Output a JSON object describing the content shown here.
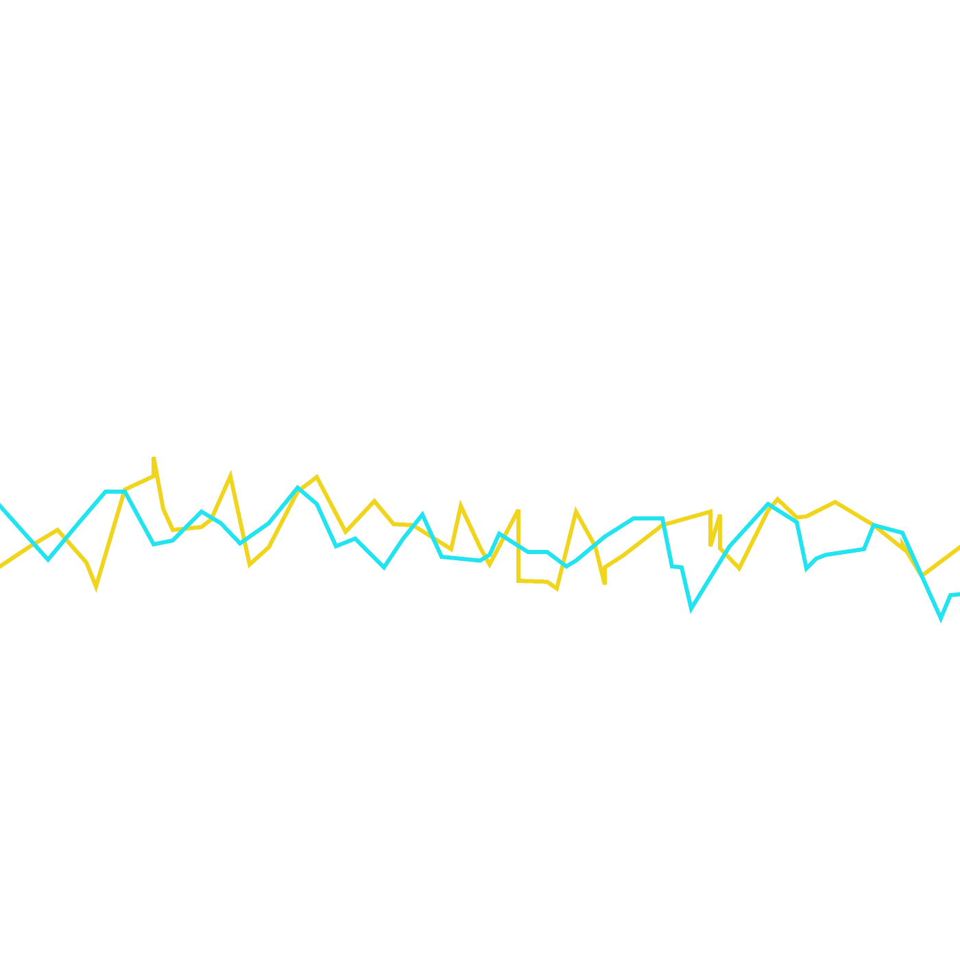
{
  "chart_data": {
    "type": "line",
    "title": "",
    "xlabel": "",
    "ylabel": "",
    "grid": false,
    "legend": "none",
    "xlim": [
      0,
      100
    ],
    "ylim": [
      0,
      100
    ],
    "series": [
      {
        "color": "#f0d51c",
        "x": [
          0,
          3,
          6,
          9,
          10,
          13,
          16,
          16,
          17,
          18,
          21,
          22,
          24,
          26,
          28,
          31,
          33,
          36,
          39,
          41,
          43,
          47,
          48,
          50,
          51,
          54,
          54,
          57,
          58,
          60,
          62,
          63,
          63,
          65,
          69,
          74,
          74,
          74,
          75,
          75,
          77,
          80,
          81,
          83,
          84,
          87,
          91,
          94,
          94,
          96,
          100
        ],
        "y": [
          41.0,
          43.0,
          44.8,
          41.4,
          38.9,
          49.0,
          50.4,
          52.4,
          47.0,
          44.8,
          45.1,
          45.9,
          50.4,
          41.2,
          43.0,
          48.8,
          50.3,
          44.6,
          47.8,
          45.4,
          45.3,
          42.8,
          47.3,
          43.0,
          41.2,
          46.9,
          39.5,
          39.4,
          38.7,
          46.7,
          43.1,
          39.1,
          40.9,
          42.2,
          45.3,
          46.7,
          45.1,
          43.1,
          46.4,
          42.9,
          40.8,
          46.8,
          48.0,
          46.1,
          46.2,
          47.7,
          45.3,
          42.9,
          43.3,
          40.0,
          43.0
        ]
      },
      {
        "color": "#22e4f0",
        "x": [
          0,
          5,
          8,
          11,
          13,
          16,
          18,
          21,
          23,
          25,
          28,
          31,
          33,
          35,
          37,
          40,
          42,
          44,
          46,
          50,
          51,
          52,
          55,
          57,
          59,
          60,
          63,
          66,
          69,
          70,
          71,
          72,
          76,
          80,
          83,
          84,
          85,
          86,
          90,
          91,
          94,
          98,
          99,
          100
        ],
        "y": [
          47.3,
          41.7,
          45.3,
          48.8,
          48.8,
          43.3,
          43.7,
          46.7,
          45.5,
          43.4,
          45.5,
          49.2,
          47.5,
          43.1,
          43.9,
          40.9,
          43.9,
          46.4,
          42.0,
          41.6,
          42.2,
          44.4,
          42.5,
          42.5,
          41.0,
          41.6,
          44.1,
          46.0,
          46.0,
          41.0,
          40.9,
          36.6,
          43.1,
          47.5,
          45.6,
          40.8,
          41.8,
          42.2,
          42.8,
          45.3,
          44.5,
          35.6,
          38.0,
          38.1
        ]
      }
    ]
  }
}
